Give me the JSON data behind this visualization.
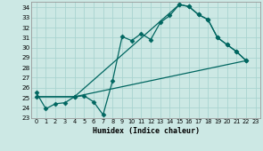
{
  "xlabel": "Humidex (Indice chaleur)",
  "bg_color": "#cce8e4",
  "grid_color": "#aad4d0",
  "line_color": "#006660",
  "xlim": [
    -0.5,
    23.5
  ],
  "ylim": [
    23,
    34.5
  ],
  "yticks": [
    23,
    24,
    25,
    26,
    27,
    28,
    29,
    30,
    31,
    32,
    33,
    34
  ],
  "xticks": [
    0,
    1,
    2,
    3,
    4,
    5,
    6,
    7,
    8,
    9,
    10,
    11,
    12,
    13,
    14,
    15,
    16,
    17,
    18,
    19,
    20,
    21,
    22,
    23
  ],
  "line1_x": [
    0,
    1,
    2,
    3,
    4,
    5,
    6,
    7,
    8,
    9,
    10,
    11,
    12,
    13,
    14,
    15,
    16,
    17,
    18,
    19,
    20,
    21,
    22
  ],
  "line1_y": [
    25.5,
    23.9,
    24.4,
    24.5,
    25.1,
    25.2,
    24.6,
    23.3,
    26.7,
    31.1,
    30.7,
    31.4,
    30.8,
    32.5,
    33.2,
    34.3,
    34.1,
    33.3,
    32.8,
    31.0,
    30.3,
    29.6,
    28.7
  ],
  "line2_x": [
    0,
    4,
    22
  ],
  "line2_y": [
    25.1,
    25.1,
    28.7
  ],
  "line3_x": [
    0,
    4,
    15,
    16,
    17,
    18,
    19,
    20,
    21,
    22
  ],
  "line3_y": [
    25.1,
    25.1,
    34.3,
    34.1,
    33.3,
    32.8,
    31.0,
    30.3,
    29.6,
    28.7
  ],
  "marker": "D",
  "markersize": 2.5,
  "linewidth": 0.9
}
